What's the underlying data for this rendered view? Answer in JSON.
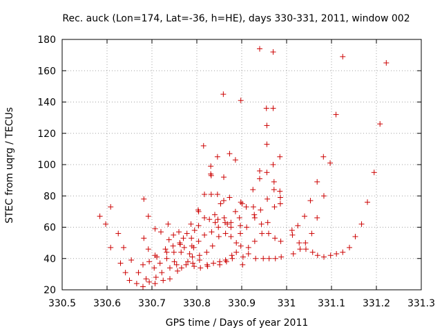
{
  "chart_data": {
    "type": "scatter",
    "title": "Rec. auck (Lon=174, Lat=-36, h=HE), days 330-331, 2011, window 002",
    "xlabel": "GPS time / Days of year 2011",
    "ylabel": "STEC from uqrg / TECUs",
    "xlim": [
      330.5,
      331.3
    ],
    "ylim": [
      20,
      180
    ],
    "x_ticks": [
      "330.5",
      "330.6",
      "330.7",
      "330.8",
      "330.9",
      "331",
      "331.1",
      "331.2",
      "331.3"
    ],
    "y_ticks": [
      "20",
      "40",
      "60",
      "80",
      "100",
      "120",
      "140",
      "160",
      "180"
    ],
    "grid": true,
    "marker": "+",
    "color": "#cc0000",
    "series": [
      {
        "name": "STEC",
        "points": [
          [
            330.584,
            67
          ],
          [
            330.597,
            62
          ],
          [
            330.608,
            73
          ],
          [
            330.608,
            47
          ],
          [
            330.625,
            56
          ],
          [
            330.63,
            37
          ],
          [
            330.637,
            47
          ],
          [
            330.641,
            31
          ],
          [
            330.65,
            26
          ],
          [
            330.654,
            39
          ],
          [
            330.666,
            24
          ],
          [
            330.67,
            31
          ],
          [
            330.68,
            36
          ],
          [
            330.68,
            22
          ],
          [
            330.682,
            78
          ],
          [
            330.682,
            53
          ],
          [
            330.687,
            27
          ],
          [
            330.692,
            67
          ],
          [
            330.692,
            46
          ],
          [
            330.694,
            38
          ],
          [
            330.694,
            25
          ],
          [
            330.707,
            59
          ],
          [
            330.707,
            42
          ],
          [
            330.705,
            34
          ],
          [
            330.709,
            28
          ],
          [
            330.707,
            24
          ],
          [
            330.711,
            41
          ],
          [
            330.718,
            37
          ],
          [
            330.72,
            57
          ],
          [
            330.722,
            31
          ],
          [
            330.725,
            26
          ],
          [
            330.73,
            46
          ],
          [
            330.733,
            44
          ],
          [
            330.733,
            40
          ],
          [
            330.736,
            62
          ],
          [
            330.738,
            52
          ],
          [
            330.74,
            34
          ],
          [
            330.74,
            27
          ],
          [
            330.747,
            48
          ],
          [
            330.748,
            55
          ],
          [
            330.749,
            44
          ],
          [
            330.75,
            38
          ],
          [
            330.755,
            36
          ],
          [
            330.757,
            32
          ],
          [
            330.76,
            57
          ],
          [
            330.762,
            50
          ],
          [
            330.763,
            49
          ],
          [
            330.765,
            44
          ],
          [
            330.766,
            34
          ],
          [
            330.77,
            53
          ],
          [
            330.772,
            47
          ],
          [
            330.776,
            36
          ],
          [
            330.778,
            56
          ],
          [
            330.78,
            38
          ],
          [
            330.784,
            43
          ],
          [
            330.787,
            62
          ],
          [
            330.788,
            53
          ],
          [
            330.789,
            48
          ],
          [
            330.79,
            41
          ],
          [
            330.791,
            37
          ],
          [
            330.793,
            47
          ],
          [
            330.794,
            35
          ],
          [
            330.795,
            58
          ],
          [
            330.803,
            71
          ],
          [
            330.804,
            70
          ],
          [
            330.804,
            61
          ],
          [
            330.804,
            51
          ],
          [
            330.806,
            42
          ],
          [
            330.806,
            39
          ],
          [
            330.808,
            34
          ],
          [
            330.815,
            112
          ],
          [
            330.817,
            81
          ],
          [
            330.817,
            66
          ],
          [
            330.817,
            55
          ],
          [
            330.822,
            44
          ],
          [
            330.823,
            36
          ],
          [
            330.824,
            35
          ],
          [
            330.828,
            65
          ],
          [
            330.831,
            99
          ],
          [
            330.831,
            94
          ],
          [
            330.832,
            81
          ],
          [
            330.832,
            93
          ],
          [
            330.833,
            57
          ],
          [
            330.835,
            48
          ],
          [
            330.837,
            37
          ],
          [
            330.84,
            68
          ],
          [
            330.841,
            63
          ],
          [
            330.846,
            105
          ],
          [
            330.846,
            81
          ],
          [
            330.847,
            65
          ],
          [
            330.848,
            60
          ],
          [
            330.849,
            54
          ],
          [
            330.851,
            38
          ],
          [
            330.851,
            36
          ],
          [
            330.853,
            75
          ],
          [
            330.859,
            145
          ],
          [
            330.86,
            92
          ],
          [
            330.86,
            77
          ],
          [
            330.861,
            66
          ],
          [
            330.863,
            63
          ],
          [
            330.864,
            56
          ],
          [
            330.864,
            39
          ],
          [
            330.866,
            38
          ],
          [
            330.868,
            62
          ],
          [
            330.873,
            107
          ],
          [
            330.873,
            79
          ],
          [
            330.876,
            63
          ],
          [
            330.876,
            60
          ],
          [
            330.876,
            54
          ],
          [
            330.878,
            42
          ],
          [
            330.879,
            40
          ],
          [
            330.886,
            103
          ],
          [
            330.886,
            70
          ],
          [
            330.888,
            50
          ],
          [
            330.888,
            44
          ],
          [
            330.895,
            66
          ],
          [
            330.897,
            61
          ],
          [
            330.897,
            56
          ],
          [
            330.898,
            141
          ],
          [
            330.898,
            76
          ],
          [
            330.898,
            48
          ],
          [
            330.901,
            75
          ],
          [
            330.903,
            41
          ],
          [
            330.902,
            36
          ],
          [
            330.91,
            73
          ],
          [
            330.911,
            60
          ],
          [
            330.915,
            47
          ],
          [
            330.915,
            43
          ],
          [
            330.925,
            84
          ],
          [
            330.926,
            73
          ],
          [
            330.928,
            68
          ],
          [
            330.929,
            66
          ],
          [
            330.929,
            51
          ],
          [
            330.931,
            40
          ],
          [
            330.94,
            174
          ],
          [
            330.94,
            96
          ],
          [
            330.94,
            91
          ],
          [
            330.942,
            71
          ],
          [
            330.944,
            62
          ],
          [
            330.945,
            56
          ],
          [
            330.948,
            40
          ],
          [
            330.955,
            136
          ],
          [
            330.956,
            125
          ],
          [
            330.956,
            113
          ],
          [
            330.956,
            95
          ],
          [
            330.957,
            78
          ],
          [
            330.958,
            63
          ],
          [
            330.96,
            56
          ],
          [
            330.961,
            40
          ],
          [
            330.97,
            172
          ],
          [
            330.97,
            136
          ],
          [
            330.97,
            100
          ],
          [
            330.972,
            89
          ],
          [
            330.972,
            84
          ],
          [
            330.973,
            73
          ],
          [
            330.974,
            53
          ],
          [
            330.975,
            40
          ],
          [
            330.985,
            105
          ],
          [
            330.985,
            83
          ],
          [
            330.986,
            79
          ],
          [
            330.986,
            75
          ],
          [
            330.987,
            51
          ],
          [
            330.988,
            41
          ],
          [
            331.012,
            58
          ],
          [
            331.013,
            55
          ],
          [
            331.015,
            43
          ],
          [
            331.025,
            61
          ],
          [
            331.028,
            50
          ],
          [
            331.03,
            46
          ],
          [
            331.04,
            67
          ],
          [
            331.042,
            50
          ],
          [
            331.043,
            46
          ],
          [
            331.053,
            77
          ],
          [
            331.056,
            56
          ],
          [
            331.058,
            44
          ],
          [
            331.068,
            89
          ],
          [
            331.068,
            66
          ],
          [
            331.069,
            42
          ],
          [
            331.082,
            105
          ],
          [
            331.083,
            80
          ],
          [
            331.083,
            41
          ],
          [
            331.097,
            101
          ],
          [
            331.098,
            42
          ],
          [
            331.11,
            132
          ],
          [
            331.111,
            43
          ],
          [
            331.125,
            169
          ],
          [
            331.125,
            44
          ],
          [
            331.14,
            47
          ],
          [
            331.153,
            54
          ],
          [
            331.167,
            62
          ],
          [
            331.18,
            76
          ],
          [
            331.195,
            95
          ],
          [
            331.208,
            126
          ],
          [
            331.222,
            165
          ]
        ]
      }
    ]
  }
}
